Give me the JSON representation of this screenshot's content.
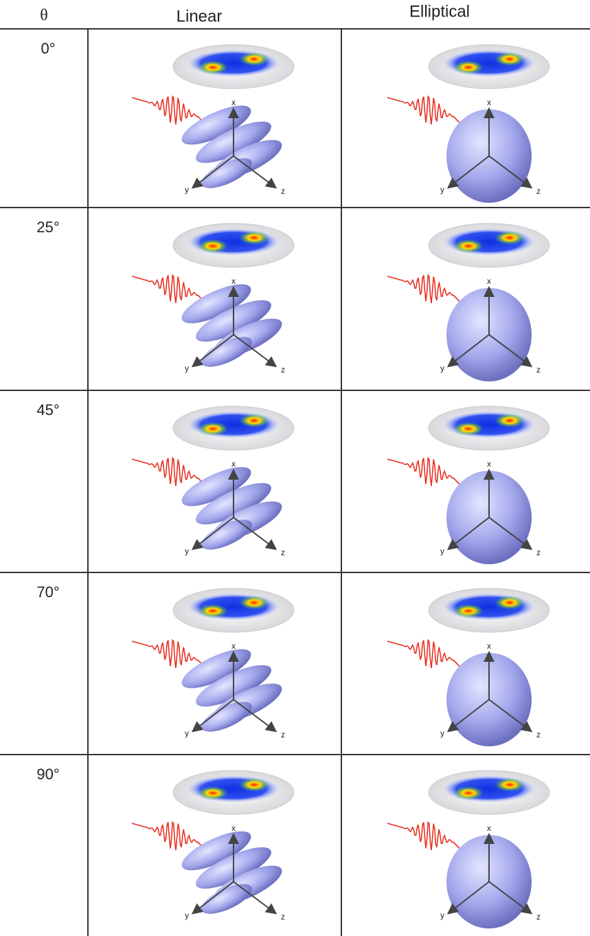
{
  "header": {
    "angle": "θ",
    "columns": [
      "Linear",
      "Elliptical"
    ]
  },
  "rows": [
    "0°",
    "25°",
    "45°",
    "70°",
    "90°"
  ],
  "axis_labels": [
    "x",
    "y",
    "z"
  ]
}
